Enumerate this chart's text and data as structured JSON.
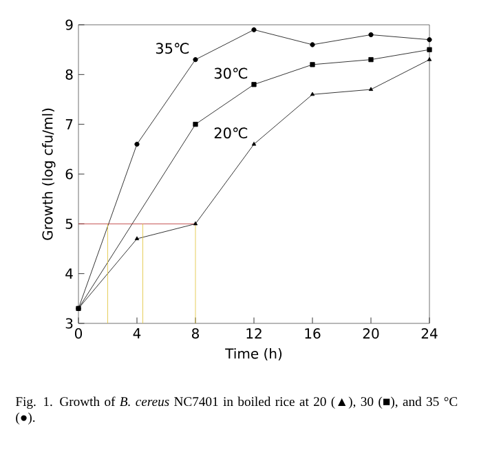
{
  "chart_data": {
    "type": "line",
    "xlabel": "Time (h)",
    "ylabel": "Growth (log cfu/ml)",
    "xlim": [
      0,
      24
    ],
    "ylim": [
      3,
      9
    ],
    "xticks": [
      0,
      4,
      8,
      12,
      16,
      20,
      24
    ],
    "yticks": [
      3,
      4,
      5,
      6,
      7,
      8,
      9
    ],
    "grid": false,
    "legend": false,
    "series": [
      {
        "name": "35℃",
        "color": "#000000",
        "marker": "circle",
        "x": [
          0,
          4,
          8,
          12,
          16,
          20,
          24
        ],
        "values": [
          3.3,
          6.6,
          8.3,
          8.9,
          8.6,
          8.8,
          8.7
        ]
      },
      {
        "name": "30℃",
        "color": "#000000",
        "marker": "square",
        "x": [
          0,
          8,
          12,
          16,
          20,
          24
        ],
        "values": [
          3.3,
          7.0,
          7.8,
          8.2,
          8.3,
          8.5
        ]
      },
      {
        "name": "20℃",
        "color": "#000000",
        "marker": "triangle",
        "x": [
          0,
          4,
          8,
          12,
          16,
          20,
          24
        ],
        "values": [
          3.3,
          4.7,
          5.0,
          6.6,
          7.6,
          7.7,
          8.3
        ]
      },
      {
        "color": "#b22222",
        "marker": "none",
        "x": [
          0,
          8
        ],
        "values": [
          5,
          5
        ]
      },
      {
        "color": "#e0c030",
        "marker": "none",
        "x": [
          2,
          2
        ],
        "values": [
          3,
          5
        ]
      },
      {
        "color": "#e0c030",
        "marker": "none",
        "x": [
          4.4,
          4.4
        ],
        "values": [
          3,
          5
        ]
      },
      {
        "color": "#e0c030",
        "marker": "none",
        "x": [
          8,
          8
        ],
        "values": [
          3,
          5
        ]
      }
    ],
    "annotations": [
      "Fig. 1. Growth of *B. cereus* NC7401 in boiled rice at 20 (▲), 30 (■), and 35 °C (●)."
    ]
  }
}
